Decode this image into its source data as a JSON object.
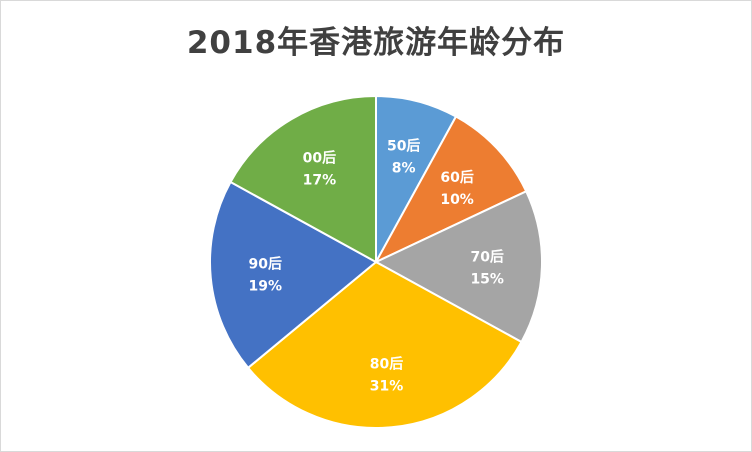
{
  "chart_data": {
    "type": "pie",
    "title": "2018年香港旅游年龄分布",
    "start_angle_deg": 0,
    "direction": "clockwise",
    "slices": [
      {
        "name": "50后",
        "value": 8,
        "label": "8%",
        "color": "#5B9BD5"
      },
      {
        "name": "60后",
        "value": 10,
        "label": "10%",
        "color": "#ED7D31"
      },
      {
        "name": "70后",
        "value": 15,
        "label": "15%",
        "color": "#A5A5A5"
      },
      {
        "name": "80后",
        "value": 31,
        "label": "31%",
        "color": "#FFC000"
      },
      {
        "name": "90后",
        "value": 19,
        "label": "19%",
        "color": "#4472C4"
      },
      {
        "name": "00后",
        "value": 17,
        "label": "17%",
        "color": "#70AD47"
      }
    ]
  }
}
